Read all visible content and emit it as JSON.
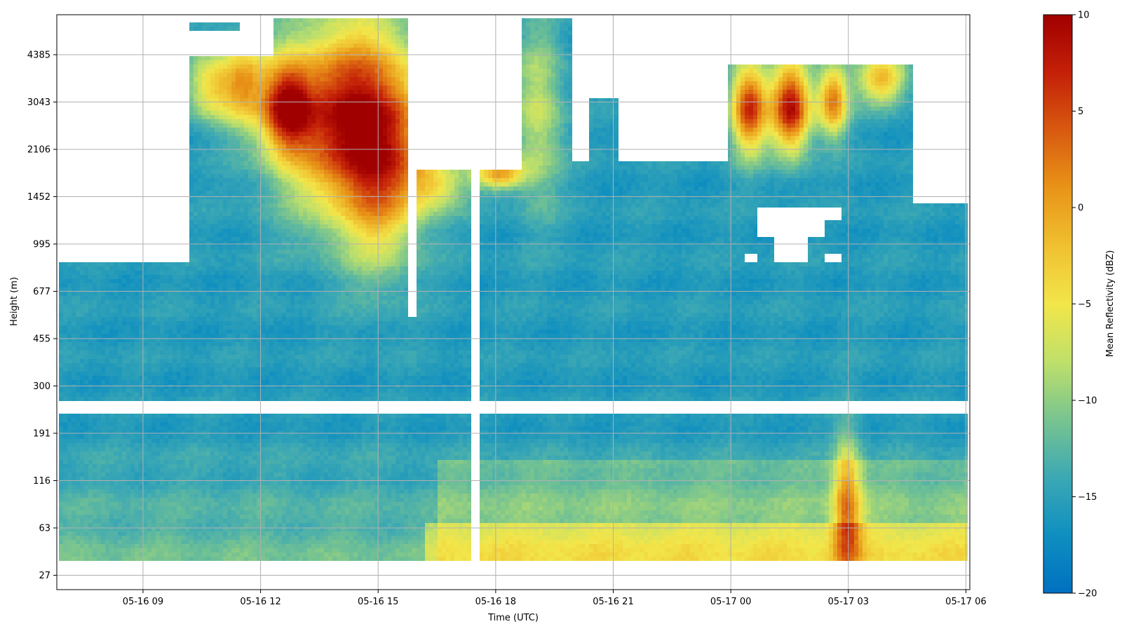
{
  "chart_data": {
    "type": "heatmap",
    "xlabel": "Time (UTC)",
    "ylabel": "Height (m)",
    "x_ticks": [
      "05-16 09",
      "05-16 12",
      "05-16 15",
      "05-16 18",
      "05-16 21",
      "05-17 00",
      "05-17 03",
      "05-17 06"
    ],
    "x_range_hours": [
      6.8,
      30.1
    ],
    "y_ticks": [
      "27",
      "63",
      "116",
      "191",
      "300",
      "455",
      "677",
      "995",
      "1452",
      "2106",
      "3043",
      "4385"
    ],
    "y_scale": "log",
    "grid": true,
    "colorbar": {
      "label": "Mean Reflectivity (dBZ)",
      "min": -20,
      "max": 10,
      "ticks": [
        "10",
        "5",
        "0",
        "−5",
        "−10",
        "−15",
        "−20"
      ],
      "colors": [
        "#0070c0",
        "#0f8fc0",
        "#3ca8b4",
        "#78c490",
        "#bfe06a",
        "#f2e64a",
        "#f0c030",
        "#e89418",
        "#d85a10",
        "#c42008",
        "#a00000"
      ]
    }
  }
}
